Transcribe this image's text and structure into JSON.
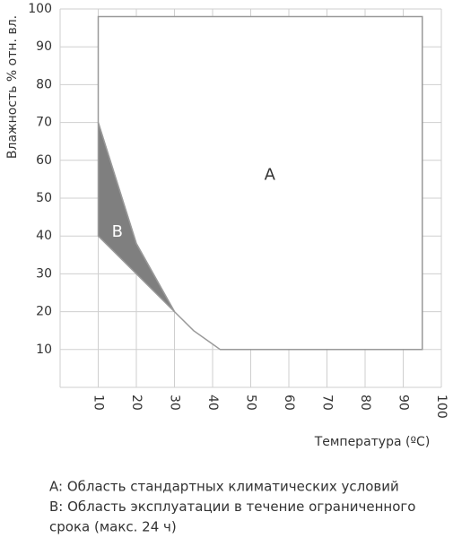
{
  "chart_data": {
    "type": "polygon",
    "ylabel": "Влажность % отн. вл.",
    "xlabel": "Температура (ºC)",
    "xlim": [
      0,
      100
    ],
    "ylim": [
      0,
      100
    ],
    "xticks": [
      10,
      20,
      30,
      40,
      50,
      60,
      70,
      80,
      90,
      100
    ],
    "yticks": [
      10,
      20,
      30,
      40,
      50,
      60,
      70,
      80,
      90,
      100
    ],
    "grid": true,
    "series": [
      {
        "name": "A",
        "color": "#ffffff",
        "label_pos": [
          55,
          56
        ],
        "x": [
          10,
          95,
          95,
          42,
          35,
          30,
          20,
          10
        ],
        "values": [
          98,
          98,
          10,
          10,
          15,
          20,
          38,
          70
        ]
      },
      {
        "name": "B",
        "color": "#7f7f7f",
        "label_pos": [
          15,
          41
        ],
        "x": [
          10,
          20,
          30,
          10
        ],
        "values": [
          70,
          38,
          20,
          40
        ]
      }
    ],
    "notes": [
      "A: Область стандартных климатических условий",
      "B: Область эксплуатации в течение ограниченного",
      "срока (макс. 24 ч)"
    ]
  }
}
